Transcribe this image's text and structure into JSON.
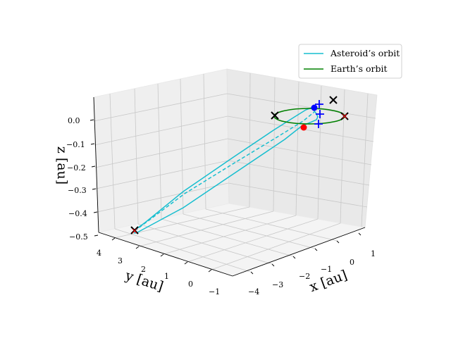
{
  "chart_data": {
    "type": "line",
    "projection": "3d",
    "xlabel": "x [au]",
    "ylabel": "y [au]",
    "zlabel": "z [au]",
    "xticks": [
      "−4",
      "−3",
      "−2",
      "−1",
      "0",
      "1"
    ],
    "yticks": [
      "−1",
      "0",
      "1",
      "2",
      "3",
      "4"
    ],
    "zticks": [
      "0.0",
      "−0.1",
      "−0.2",
      "−0.3",
      "−0.4",
      "−0.5"
    ],
    "xlim": [
      -4,
      1.2
    ],
    "ylim": [
      -1.2,
      4.6
    ],
    "zlim": [
      -0.5,
      0.05
    ],
    "grid": true,
    "legend_position": "upper-right",
    "legend": [
      {
        "label": "Asteroid’s orbit",
        "color": "#17becf"
      },
      {
        "label": "Earth’s orbit",
        "color": "#008000"
      }
    ],
    "colors": {
      "asteroid": "#17becf",
      "earth": "#008000",
      "asteroid_body": "#0000ff",
      "earth_body": "#ff0000",
      "black_marker": "#000000",
      "pane": "#f2f2f2",
      "grid": "#c8c8c8"
    }
  }
}
